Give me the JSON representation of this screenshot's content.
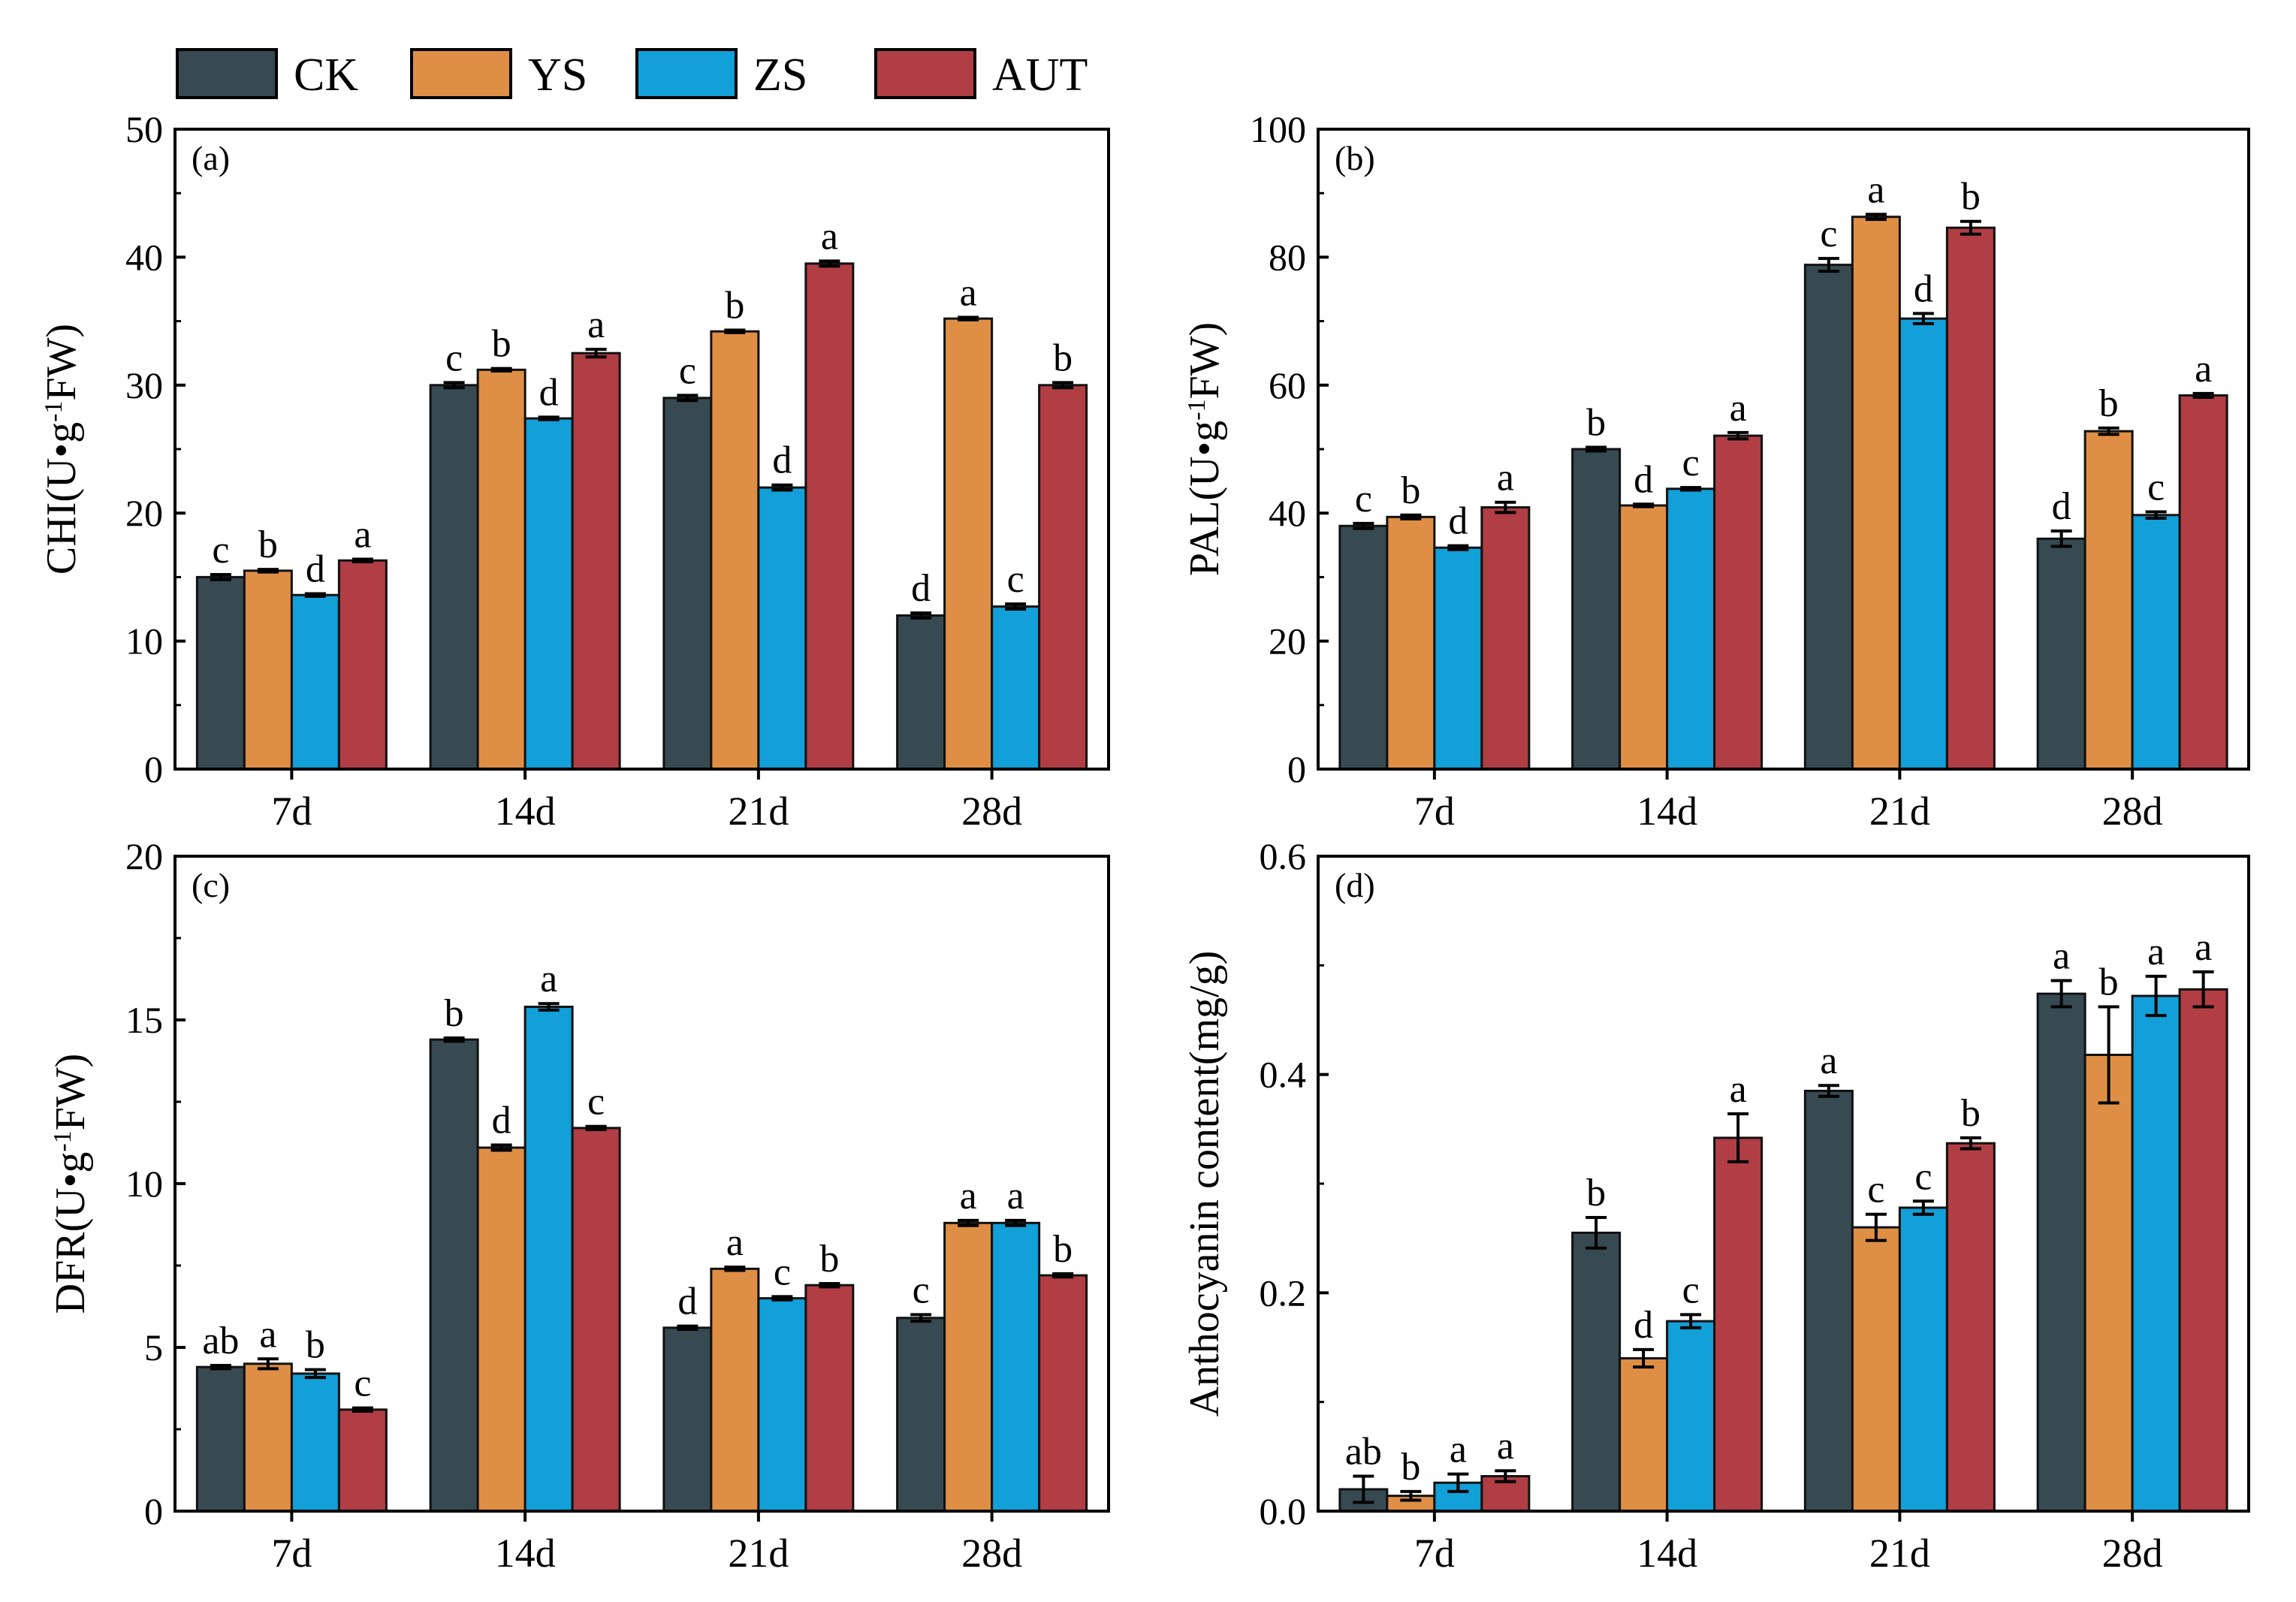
{
  "colors": {
    "CK": "#374a52",
    "YS": "#df8f45",
    "ZS": "#139fd8",
    "AUT": "#b03e44"
  },
  "legend": {
    "items": [
      "CK",
      "YS",
      "ZS",
      "AUT"
    ]
  },
  "chart_data": [
    {
      "type": "bar",
      "panel_label": "(a)",
      "ylabel_parts": [
        "CHI(U•g",
        "-1",
        "FW)"
      ],
      "ylim": [
        0,
        50
      ],
      "yticks": [
        0,
        10,
        20,
        30,
        40,
        50
      ],
      "ytick_labels": [
        "0",
        "10",
        "20",
        "30",
        "40",
        "50"
      ],
      "categories": [
        "7d",
        "14d",
        "21d",
        "28d"
      ],
      "series": [
        {
          "name": "CK",
          "values": [
            15.0,
            30.0,
            29.0,
            12.0
          ],
          "errors": [
            0.2,
            0.2,
            0.2,
            0.2
          ],
          "letters": [
            "c",
            "c",
            "c",
            "d"
          ]
        },
        {
          "name": "YS",
          "values": [
            15.5,
            31.2,
            34.2,
            35.2
          ],
          "errors": [
            0.1,
            0.1,
            0.1,
            0.1
          ],
          "letters": [
            "b",
            "b",
            "b",
            "a"
          ]
        },
        {
          "name": "ZS",
          "values": [
            13.6,
            27.4,
            22.0,
            12.7
          ],
          "errors": [
            0.1,
            0.1,
            0.2,
            0.2
          ],
          "letters": [
            "d",
            "d",
            "d",
            "c"
          ]
        },
        {
          "name": "AUT",
          "values": [
            16.3,
            32.5,
            39.5,
            30.0
          ],
          "errors": [
            0.1,
            0.3,
            0.2,
            0.2
          ],
          "letters": [
            "a",
            "a",
            "a",
            "b"
          ]
        }
      ]
    },
    {
      "type": "bar",
      "panel_label": "(b)",
      "ylabel_parts": [
        "PAL(U•g",
        "-1",
        "FW)"
      ],
      "ylim": [
        0,
        100
      ],
      "yticks": [
        0,
        20,
        40,
        60,
        80,
        100
      ],
      "ytick_labels": [
        "0",
        "20",
        "40",
        "60",
        "80",
        "100"
      ],
      "categories": [
        "7d",
        "14d",
        "21d",
        "28d"
      ],
      "series": [
        {
          "name": "CK",
          "values": [
            38.0,
            50.0,
            78.8,
            36.0
          ],
          "errors": [
            0.4,
            0.3,
            1.0,
            1.2
          ],
          "letters": [
            "c",
            "b",
            "c",
            "d"
          ]
        },
        {
          "name": "YS",
          "values": [
            39.4,
            41.2,
            86.3,
            52.8
          ],
          "errors": [
            0.3,
            0.2,
            0.4,
            0.5
          ],
          "letters": [
            "b",
            "d",
            "a",
            "b"
          ]
        },
        {
          "name": "ZS",
          "values": [
            34.6,
            43.8,
            70.4,
            39.7
          ],
          "errors": [
            0.3,
            0.2,
            0.8,
            0.5
          ],
          "letters": [
            "d",
            "c",
            "d",
            "c"
          ]
        },
        {
          "name": "AUT",
          "values": [
            40.9,
            52.1,
            84.6,
            58.4
          ],
          "errors": [
            0.8,
            0.5,
            1.0,
            0.3
          ],
          "letters": [
            "a",
            "a",
            "b",
            "a"
          ]
        }
      ]
    },
    {
      "type": "bar",
      "panel_label": "(c)",
      "ylabel_parts": [
        "DFR(U•g",
        "-1",
        "FW)"
      ],
      "ylim": [
        0,
        20
      ],
      "yticks": [
        0,
        5,
        10,
        15,
        20
      ],
      "ytick_labels": [
        "0",
        "5",
        "10",
        "15",
        "20"
      ],
      "categories": [
        "7d",
        "14d",
        "21d",
        "28d"
      ],
      "series": [
        {
          "name": "CK",
          "values": [
            4.4,
            14.4,
            5.6,
            5.9
          ],
          "errors": [
            0.05,
            0.05,
            0.05,
            0.1
          ],
          "letters": [
            "ab",
            "b",
            "d",
            "c"
          ]
        },
        {
          "name": "YS",
          "values": [
            4.5,
            11.1,
            7.4,
            8.8
          ],
          "errors": [
            0.15,
            0.08,
            0.05,
            0.08
          ],
          "letters": [
            "a",
            "d",
            "a",
            "a"
          ]
        },
        {
          "name": "ZS",
          "values": [
            4.2,
            15.4,
            6.5,
            8.8
          ],
          "errors": [
            0.12,
            0.1,
            0.05,
            0.08
          ],
          "letters": [
            "b",
            "a",
            "c",
            "a"
          ]
        },
        {
          "name": "AUT",
          "values": [
            3.1,
            11.7,
            6.9,
            7.2
          ],
          "errors": [
            0.05,
            0.05,
            0.05,
            0.05
          ],
          "letters": [
            "c",
            "c",
            "b",
            "b"
          ]
        }
      ]
    },
    {
      "type": "bar",
      "panel_label": "(d)",
      "ylabel_parts": [
        "Anthocyanin content(mg/g)"
      ],
      "ylim": [
        0,
        0.6
      ],
      "yticks": [
        0,
        0.2,
        0.4,
        0.6
      ],
      "ytick_labels": [
        "0.0",
        "0.2",
        "0.4",
        "0.6"
      ],
      "categories": [
        "7d",
        "14d",
        "21d",
        "28d"
      ],
      "series": [
        {
          "name": "CK",
          "values": [
            0.02,
            0.255,
            0.385,
            0.474
          ],
          "errors": [
            0.012,
            0.014,
            0.005,
            0.012
          ],
          "letters": [
            "ab",
            "b",
            "a",
            "a"
          ]
        },
        {
          "name": "YS",
          "values": [
            0.014,
            0.14,
            0.26,
            0.418
          ],
          "errors": [
            0.004,
            0.008,
            0.012,
            0.044
          ],
          "letters": [
            "b",
            "d",
            "c",
            "b"
          ]
        },
        {
          "name": "ZS",
          "values": [
            0.026,
            0.174,
            0.278,
            0.472
          ],
          "errors": [
            0.008,
            0.006,
            0.006,
            0.018
          ],
          "letters": [
            "a",
            "c",
            "c",
            "a"
          ]
        },
        {
          "name": "AUT",
          "values": [
            0.032,
            0.342,
            0.337,
            0.478
          ],
          "errors": [
            0.005,
            0.022,
            0.005,
            0.016
          ],
          "letters": [
            "a",
            "a",
            "b",
            "a"
          ]
        }
      ]
    }
  ]
}
